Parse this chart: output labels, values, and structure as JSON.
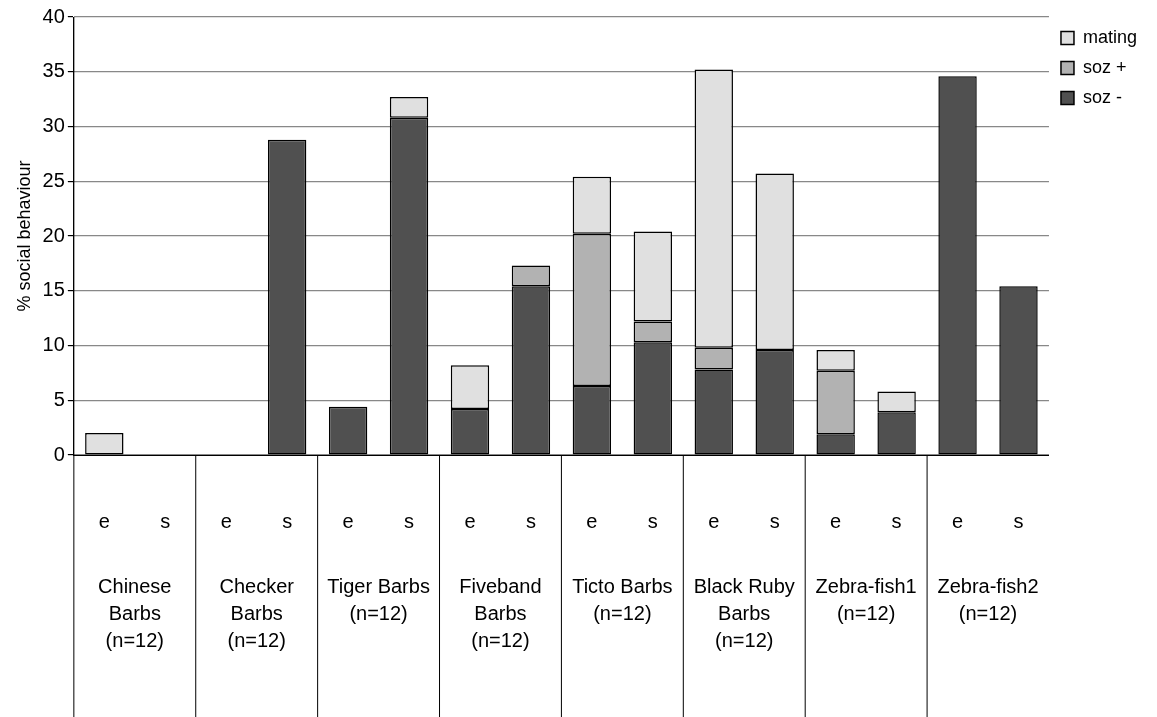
{
  "chart_data": {
    "type": "bar",
    "ylabel": "% social behaviour",
    "categories": [
      "e",
      "s",
      "e",
      "s",
      "e",
      "s",
      "e",
      "s",
      "e",
      "s",
      "e",
      "s",
      "e",
      "s",
      "e",
      "s"
    ],
    "series": [
      {
        "name": "soz -",
        "color": "#505050",
        "values": [
          0,
          0,
          0,
          28.8,
          4.4,
          30.8,
          4.2,
          15.4,
          6.3,
          10.3,
          7.8,
          9.6,
          1.9,
          3.9,
          34.6,
          15.4
        ]
      },
      {
        "name": "soz +",
        "color": "#b2b2b2",
        "values": [
          0,
          0,
          0,
          0,
          0,
          0,
          0,
          1.9,
          13.9,
          1.9,
          2.0,
          0,
          5.8,
          0,
          0,
          0
        ]
      },
      {
        "name": "mating",
        "color": "#e0e0e0",
        "values": [
          2.0,
          0,
          0,
          0,
          0,
          1.9,
          4.0,
          0,
          5.2,
          8.2,
          25.4,
          16.1,
          1.9,
          1.9,
          0,
          0
        ]
      }
    ],
    "stacked": true,
    "ylim": [
      0,
      40
    ],
    "yticks": [
      0,
      5,
      10,
      15,
      20,
      25,
      30,
      35,
      40
    ],
    "grid": "y",
    "legend": "top right",
    "annotations": [
      "Chinese Barbs (n=12)",
      "Checker Barbs (n=12)",
      "Tiger Barbs (n=12)",
      "Fiveband Barbs (n=12)",
      "Ticto Barbs (n=12)",
      "Black Ruby Barbs (n=12)",
      "Zebra-fish1 (n=12)",
      "Zebra-fish2 (n=12)"
    ]
  }
}
